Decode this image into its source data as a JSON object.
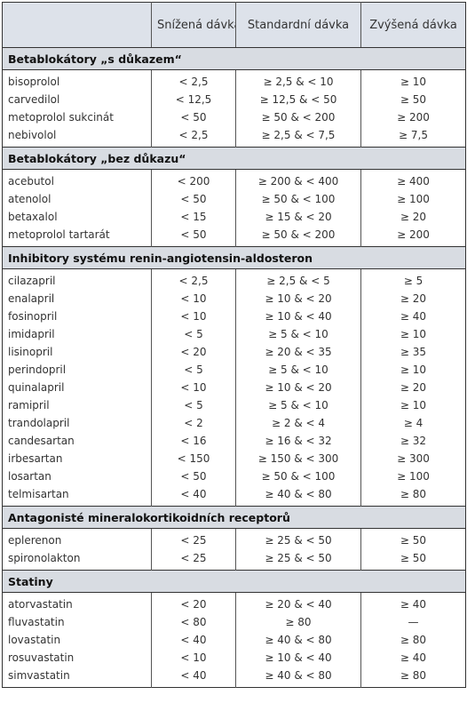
{
  "header": {
    "columns": [
      "Snížená dávka",
      "Standardní dávka",
      "Zvýšená dávka"
    ]
  },
  "sections": [
    {
      "title": "Betablokátory „s důkazem“",
      "rows": [
        [
          "bisoprolol",
          "< 2,5",
          "≥ 2,5 & < 10",
          "≥ 10"
        ],
        [
          "carvedilol",
          "< 12,5",
          "≥ 12,5 & < 50",
          "≥ 50"
        ],
        [
          "metoprolol sukcinát",
          "< 50",
          "≥ 50 & < 200",
          "≥ 200"
        ],
        [
          "nebivolol",
          "< 2,5",
          "≥ 2,5 & < 7,5",
          "≥ 7,5"
        ]
      ]
    },
    {
      "title": "Betablokátory „bez důkazu“",
      "rows": [
        [
          "acebutol",
          "< 200",
          "≥ 200 & < 400",
          "≥ 400"
        ],
        [
          "atenolol",
          "< 50",
          "≥ 50 & < 100",
          "≥ 100"
        ],
        [
          "betaxalol",
          "< 15",
          "≥ 15 & < 20",
          "≥ 20"
        ],
        [
          "metoprolol tartarát",
          "< 50",
          "≥ 50 & < 200",
          "≥ 200"
        ]
      ]
    },
    {
      "title": "Inhibitory systému renin-angiotensin-aldosteron",
      "rows": [
        [
          "cilazapril",
          "< 2,5",
          "≥ 2,5 & < 5",
          "≥ 5"
        ],
        [
          "enalapril",
          "< 10",
          "≥ 10 & < 20",
          "≥ 20"
        ],
        [
          "fosinopril",
          "< 10",
          "≥ 10 & < 40",
          "≥ 40"
        ],
        [
          "imidapril",
          "< 5",
          "≥ 5 & < 10",
          "≥ 10"
        ],
        [
          "lisinopril",
          "< 20",
          "≥ 20 & < 35",
          "≥ 35"
        ],
        [
          "perindopril",
          "< 5",
          "≥ 5 & < 10",
          "≥ 10"
        ],
        [
          "quinalapril",
          "< 10",
          "≥ 10 & < 20",
          "≥ 20"
        ],
        [
          "ramipril",
          "< 5",
          "≥ 5 & < 10",
          "≥ 10"
        ],
        [
          "trandolapril",
          "< 2",
          "≥ 2 & < 4",
          "≥ 4"
        ],
        [
          "candesartan",
          "< 16",
          "≥ 16 & < 32",
          "≥ 32"
        ],
        [
          "irbesartan",
          "< 150",
          "≥ 150 & < 300",
          "≥ 300"
        ],
        [
          "losartan",
          "< 50",
          "≥ 50 & < 100",
          "≥ 100"
        ],
        [
          "telmisartan",
          "< 40",
          "≥ 40 & < 80",
          "≥ 80"
        ]
      ]
    },
    {
      "title": "Antagonisté mineralokortikoidních receptorů",
      "rows": [
        [
          "eplerenon",
          "< 25",
          "≥ 25 & < 50",
          "≥ 50"
        ],
        [
          "spironolakton",
          "< 25",
          "≥ 25 & < 50",
          "≥ 50"
        ]
      ]
    },
    {
      "title": "Statiny",
      "rows": [
        [
          "atorvastatin",
          "< 20",
          "≥ 20 & < 40",
          "≥ 40"
        ],
        [
          "fluvastatin",
          "< 80",
          "≥ 80",
          "—"
        ],
        [
          "lovastatin",
          "< 40",
          "≥ 40 & < 80",
          "≥ 80"
        ],
        [
          "rosuvastatin",
          "< 10",
          "≥ 10 & < 40",
          "≥ 40"
        ],
        [
          "simvastatin",
          "< 40",
          "≥ 40 & < 80",
          "≥ 80"
        ]
      ]
    }
  ]
}
